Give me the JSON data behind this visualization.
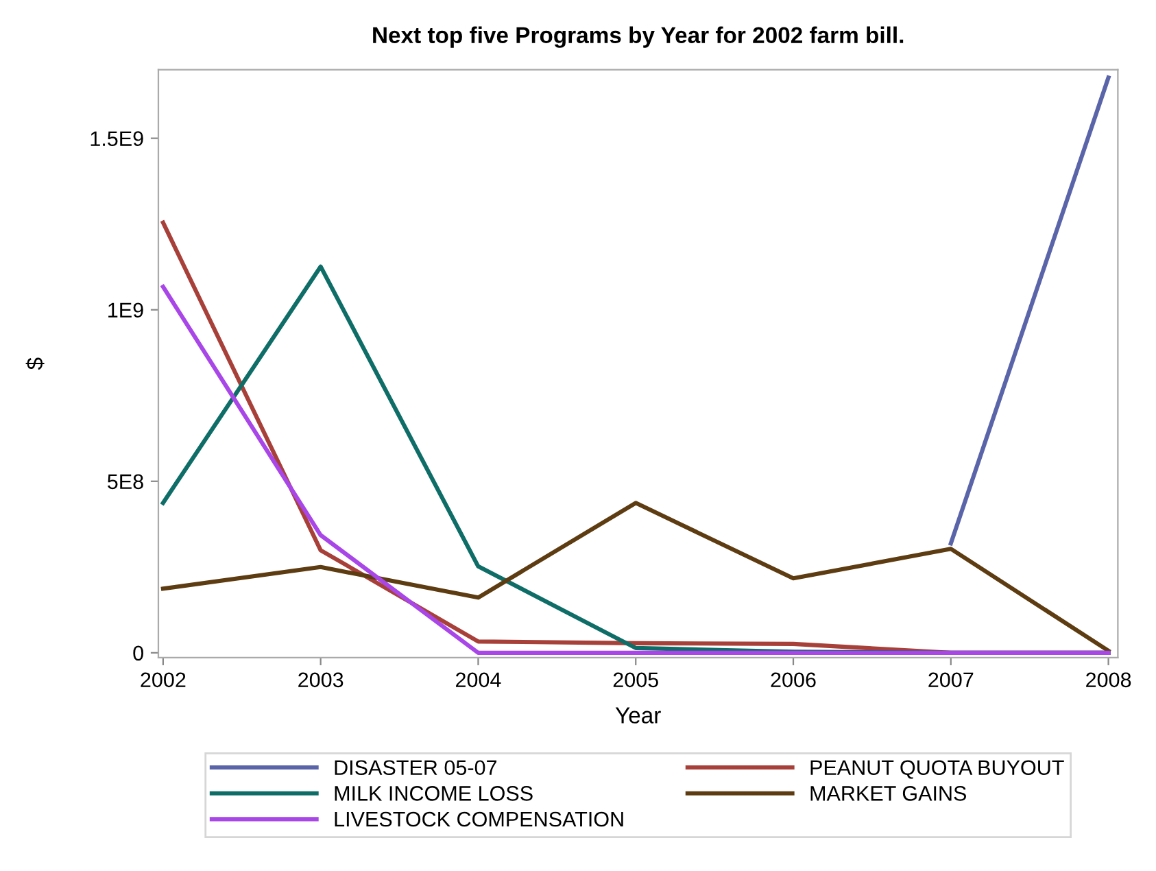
{
  "chart_data": {
    "type": "line",
    "title": "Next top five Programs by Year for 2002 farm bill.",
    "xlabel": "Year",
    "ylabel": "$",
    "x": [
      2002,
      2003,
      2004,
      2005,
      2006,
      2007,
      2008
    ],
    "series": [
      {
        "name": "DISASTER 05-07",
        "color": "#5a64a8",
        "values": [
          null,
          null,
          null,
          null,
          null,
          319000000,
          1677000000
        ]
      },
      {
        "name": "PEANUT QUOTA BUYOUT",
        "color": "#a8403a",
        "values": [
          1254000000,
          299000000,
          33000000,
          28000000,
          26000000,
          0,
          0
        ]
      },
      {
        "name": "MILK INCOME LOSS",
        "color": "#0f6d68",
        "values": [
          437000000,
          1126000000,
          252000000,
          14000000,
          3000000,
          0,
          0
        ]
      },
      {
        "name": "MARKET GAINS",
        "color": "#5e3c12",
        "values": [
          187000000,
          250000000,
          161000000,
          437000000,
          217000000,
          303000000,
          6000000
        ]
      },
      {
        "name": "LIVESTOCK COMPENSATION",
        "color": "#a846e8",
        "values": [
          1067000000,
          343000000,
          0,
          0,
          0,
          0,
          0
        ]
      }
    ],
    "xlim": [
      2001.97,
      2008.06
    ],
    "xticks": [
      2002,
      2003,
      2004,
      2005,
      2006,
      2007,
      2008
    ],
    "ylim": [
      -14000000,
      1700000000
    ],
    "yticks": [
      0,
      {
        "value": 500000000,
        "label": "5E8"
      },
      {
        "value": 1000000000,
        "label": "1E9"
      },
      {
        "value": 1500000000,
        "label": "1.5E9"
      }
    ],
    "grid": false,
    "legend": "bottom",
    "marker": "none",
    "line_style": "solid"
  }
}
